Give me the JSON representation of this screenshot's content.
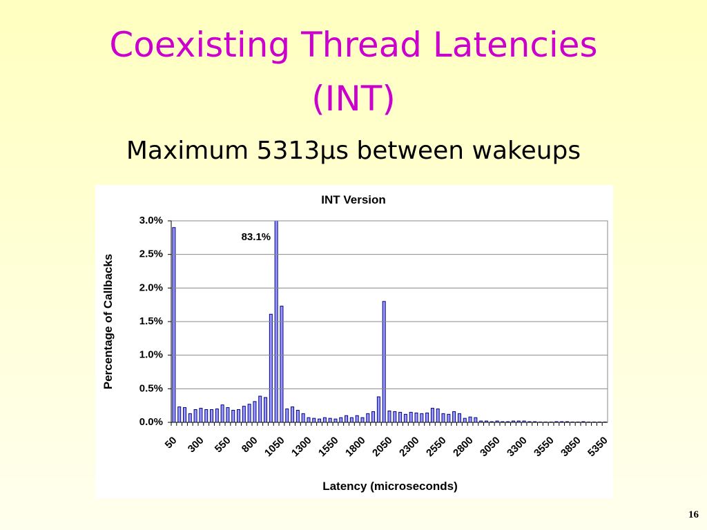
{
  "slide": {
    "title_line1": "Coexisting Thread Latencies",
    "title_line2": "(INT)",
    "subtitle": "Maximum 5313μs between wakeups",
    "page_number": "16"
  },
  "chart_data": {
    "type": "bar",
    "title": "INT Version",
    "x_label": "Latency (microseconds)",
    "y_label": "Percentage of Callbacks",
    "categories": [
      "50",
      null,
      null,
      null,
      null,
      "300",
      null,
      null,
      null,
      null,
      "550",
      null,
      null,
      null,
      null,
      "800",
      null,
      null,
      null,
      null,
      "1050",
      null,
      null,
      null,
      null,
      "1300",
      null,
      null,
      null,
      null,
      "1550",
      null,
      null,
      null,
      null,
      "1800",
      null,
      null,
      null,
      null,
      "2050",
      null,
      null,
      null,
      null,
      "2300",
      null,
      null,
      null,
      null,
      "2550",
      null,
      null,
      null,
      null,
      "2800",
      null,
      null,
      null,
      null,
      "3050",
      null,
      null,
      null,
      null,
      "3300",
      null,
      null,
      null,
      null,
      "3550",
      null,
      null,
      null,
      null,
      "3850",
      null,
      null,
      null,
      null,
      "5350"
    ],
    "values": [
      2.9,
      0.23,
      0.22,
      0.13,
      0.19,
      0.21,
      0.19,
      0.19,
      0.2,
      0.26,
      0.22,
      0.18,
      0.19,
      0.24,
      0.27,
      0.31,
      0.39,
      0.37,
      1.61,
      83.1,
      1.73,
      0.2,
      0.23,
      0.18,
      0.13,
      0.07,
      0.06,
      0.05,
      0.07,
      0.06,
      0.05,
      0.07,
      0.1,
      0.07,
      0.1,
      0.07,
      0.13,
      0.16,
      0.38,
      1.8,
      0.17,
      0.16,
      0.15,
      0.12,
      0.15,
      0.14,
      0.13,
      0.14,
      0.21,
      0.2,
      0.13,
      0.12,
      0.16,
      0.13,
      0.06,
      0.08,
      0.07,
      0.02,
      0.02,
      0.01,
      0.02,
      0.01,
      0.01,
      0.02,
      0.02,
      0.02,
      0.01,
      0.01,
      0.005,
      0.005,
      0.005,
      0.01,
      0.01,
      0.01,
      0.005,
      0.005,
      0.01,
      0.005,
      0.005,
      0.005,
      0.005
    ],
    "value_labels": [
      null,
      null,
      null,
      null,
      null,
      null,
      null,
      null,
      null,
      null,
      null,
      null,
      null,
      null,
      null,
      null,
      null,
      null,
      null,
      "83.1%",
      null,
      null,
      null,
      null,
      null,
      null,
      null,
      null,
      null,
      null,
      null,
      null,
      null,
      null,
      null,
      null,
      null,
      null,
      null,
      null,
      null,
      null,
      null,
      null,
      null,
      null,
      null,
      null,
      null,
      null,
      null,
      null,
      null,
      null,
      null,
      null,
      null,
      null,
      null,
      null,
      null,
      null,
      null,
      null,
      null,
      null,
      null,
      null,
      null,
      null,
      null,
      null,
      null,
      null,
      null,
      null,
      null,
      null,
      null,
      null,
      null
    ],
    "color": "#9999ff",
    "ylim": [
      0,
      3
    ],
    "yticks": [
      {
        "value": 0,
        "label": "0.0%"
      },
      {
        "value": 0.5,
        "label": "0.5%"
      },
      {
        "value": 1,
        "label": "1.0%"
      },
      {
        "value": 1.5,
        "label": "1.5%"
      },
      {
        "value": 2,
        "label": "2.0%"
      },
      {
        "value": 2.5,
        "label": "2.5%"
      },
      {
        "value": 3,
        "label": "3.0%"
      }
    ],
    "grid": true
  }
}
